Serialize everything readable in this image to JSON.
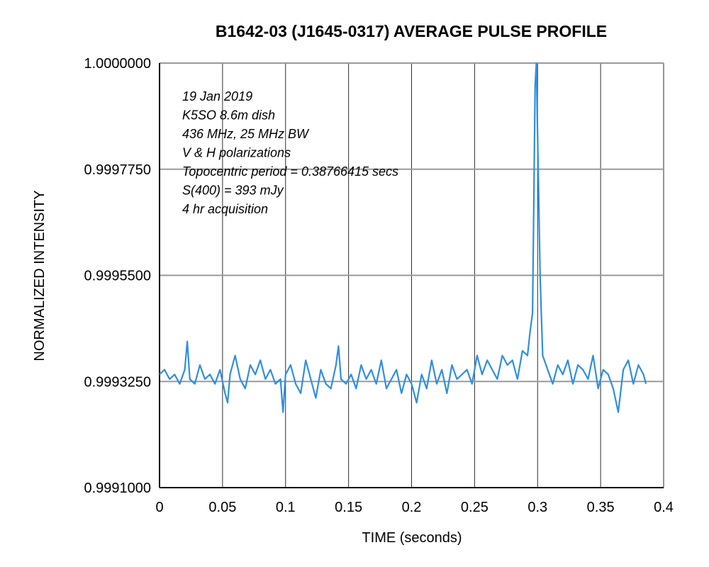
{
  "chart_data": {
    "type": "line",
    "title": "B1642-03 (J1645-0317) AVERAGE PULSE PROFILE",
    "xlabel": "TIME (seconds)",
    "ylabel": "NORMALIZED INTENSITY",
    "xlim": [
      0,
      0.4
    ],
    "ylim": [
      0.9991,
      1.0
    ],
    "x_ticks": [
      "0",
      "0.05",
      "0.1",
      "0.15",
      "0.2",
      "0.25",
      "0.3",
      "0.35",
      "0.4"
    ],
    "y_ticks": [
      "0.9991000",
      "0.9993250",
      "0.9995500",
      "0.9997750",
      "1.0000000"
    ],
    "grid": true,
    "series_color": "#2f8fe0",
    "annotations": [
      "19 Jan 2019",
      "K5SO 8.6m dish",
      "436 MHz, 25 MHz BW",
      "V & H polarizations",
      "Topocentric period = 0.38766415 secs",
      "S(400) = 393 mJy",
      "4 hr acquisition"
    ],
    "series": [
      {
        "x": [
          0.0,
          0.004,
          0.008,
          0.012,
          0.016,
          0.02,
          0.022,
          0.024,
          0.028,
          0.032,
          0.036,
          0.04,
          0.044,
          0.048,
          0.052,
          0.054,
          0.056,
          0.06,
          0.064,
          0.068,
          0.072,
          0.076,
          0.08,
          0.084,
          0.088,
          0.092,
          0.096,
          0.098,
          0.1,
          0.104,
          0.108,
          0.112,
          0.116,
          0.12,
          0.124,
          0.128,
          0.132,
          0.136,
          0.14,
          0.142,
          0.144,
          0.148,
          0.152,
          0.156,
          0.16,
          0.164,
          0.168,
          0.172,
          0.176,
          0.18,
          0.184,
          0.188,
          0.192,
          0.196,
          0.2,
          0.204,
          0.208,
          0.212,
          0.216,
          0.22,
          0.224,
          0.228,
          0.232,
          0.236,
          0.24,
          0.244,
          0.248,
          0.252,
          0.256,
          0.26,
          0.264,
          0.268,
          0.272,
          0.276,
          0.28,
          0.284,
          0.288,
          0.292,
          0.294,
          0.296,
          0.297,
          0.298,
          0.299,
          0.3,
          0.302,
          0.304,
          0.308,
          0.312,
          0.316,
          0.32,
          0.324,
          0.328,
          0.332,
          0.336,
          0.34,
          0.344,
          0.348,
          0.352,
          0.356,
          0.36,
          0.364,
          0.368,
          0.372,
          0.376,
          0.38,
          0.384,
          0.386
        ],
        "y": [
          0.99934,
          0.99935,
          0.99933,
          0.99934,
          0.99932,
          0.99935,
          0.99941,
          0.99933,
          0.99932,
          0.99936,
          0.99933,
          0.99934,
          0.99932,
          0.99935,
          0.9993,
          0.99928,
          0.99934,
          0.99938,
          0.99933,
          0.99931,
          0.99936,
          0.99934,
          0.99937,
          0.99933,
          0.99935,
          0.99932,
          0.99933,
          0.99926,
          0.99934,
          0.99936,
          0.99932,
          0.9993,
          0.99937,
          0.99933,
          0.99929,
          0.99935,
          0.99932,
          0.99931,
          0.99936,
          0.9994,
          0.99933,
          0.99932,
          0.99934,
          0.99931,
          0.99936,
          0.99933,
          0.99935,
          0.99932,
          0.99937,
          0.99931,
          0.99933,
          0.99935,
          0.9993,
          0.99934,
          0.99932,
          0.99928,
          0.99934,
          0.99931,
          0.99937,
          0.99932,
          0.99935,
          0.9993,
          0.99936,
          0.99933,
          0.99934,
          0.99935,
          0.99932,
          0.99938,
          0.99934,
          0.99937,
          0.99935,
          0.99933,
          0.99938,
          0.99936,
          0.99937,
          0.99933,
          0.99939,
          0.99938,
          0.99943,
          0.99947,
          0.9997,
          0.99995,
          1.0,
          0.99985,
          0.99955,
          0.99938,
          0.99935,
          0.99932,
          0.99936,
          0.99934,
          0.99937,
          0.99932,
          0.99936,
          0.99935,
          0.99933,
          0.99938,
          0.99931,
          0.99935,
          0.99934,
          0.99931,
          0.99926,
          0.99935,
          0.99937,
          0.99932,
          0.99936,
          0.99934,
          0.99932
        ]
      }
    ]
  }
}
